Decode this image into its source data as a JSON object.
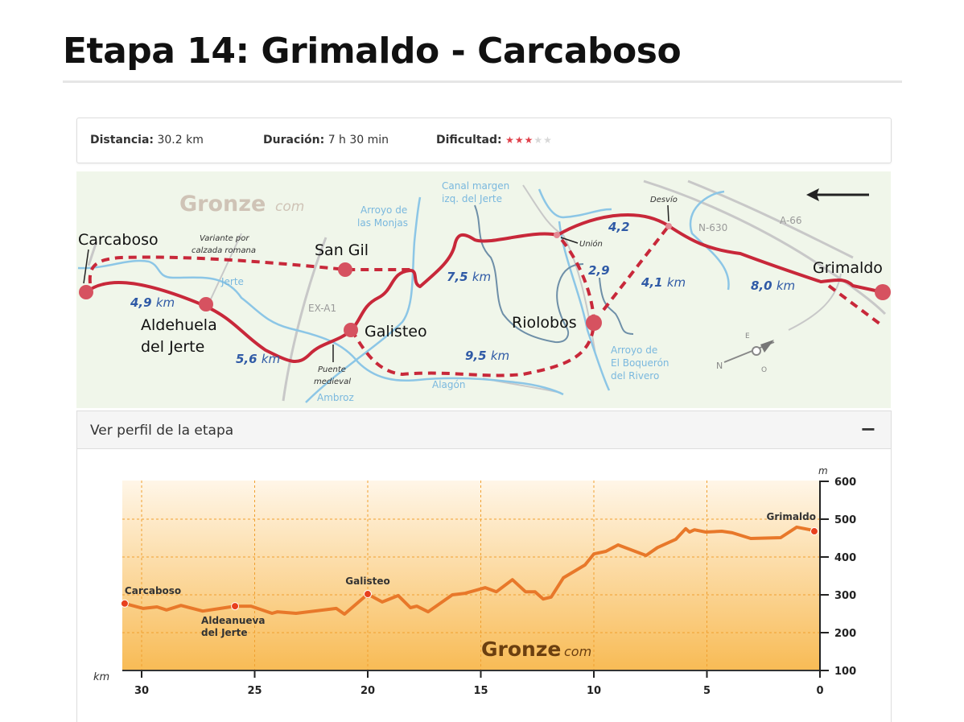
{
  "page": {
    "title": "Etapa 14: Grimaldo - Carcaboso"
  },
  "info": {
    "distance_label": "Distancia:",
    "distance_value": "30.2 km",
    "duration_label": "Duración:",
    "duration_value": "7 h 30 min",
    "difficulty_label": "Dificultad:",
    "difficulty_stars": 3,
    "difficulty_max": 5
  },
  "map": {
    "logo": "Gronze",
    "logo_suffix": "com",
    "towns": [
      "Carcaboso",
      "San Gil",
      "Aldehuela",
      "del Jerte",
      "Galisteo",
      "Riolobos",
      "Grimaldo"
    ],
    "distances": [
      "4,9",
      "km",
      "5,6",
      "km",
      "7,5",
      "km",
      "9,5",
      "km",
      "4,2",
      "2,9",
      "4,1",
      "km",
      "8,0",
      "km"
    ],
    "notes": [
      "Variante por",
      "calzada romana",
      "Puente",
      "medieval",
      "Unión",
      "Desvío"
    ],
    "rivers": [
      "Jerte",
      "Arroyo de",
      "las Monjas",
      "Canal margen",
      "izq. del Jerte",
      "Ambroz",
      "Alagón",
      "Arroyo de",
      "El Boquerón",
      "del Rivero"
    ],
    "roads": [
      "EX-A1",
      "N-630",
      "A-66"
    ],
    "compass": [
      "N",
      "E",
      "O"
    ],
    "colors": {
      "route": "#c8283a",
      "river": "#8cc6e6",
      "road": "#c8c8c8",
      "distance": "#2f5aa6"
    }
  },
  "profile": {
    "header": "Ver perfil de la etapa",
    "collapse_label": "−"
  },
  "chart_data": {
    "type": "area",
    "title": "",
    "xlabel": "km",
    "ylabel": "m",
    "xlim": [
      30.85,
      0
    ],
    "ylim": [
      100,
      600
    ],
    "xticks": [
      30,
      25,
      20,
      15,
      10,
      5,
      0
    ],
    "yticks": [
      100,
      200,
      300,
      400,
      500,
      600
    ],
    "grid": true,
    "watermark": "Gronze",
    "watermark_suffix": "com",
    "line_color": "#e8782a",
    "points": [
      [
        30.75,
        277
      ],
      [
        29.93,
        264
      ],
      [
        29.32,
        268
      ],
      [
        28.9,
        260
      ],
      [
        28.26,
        272
      ],
      [
        27.3,
        257
      ],
      [
        25.87,
        270
      ],
      [
        25.16,
        270
      ],
      [
        24.23,
        251
      ],
      [
        23.99,
        255
      ],
      [
        23.17,
        251
      ],
      [
        21.39,
        264
      ],
      [
        21.03,
        249
      ],
      [
        20.0,
        302
      ],
      [
        19.36,
        281
      ],
      [
        18.65,
        298
      ],
      [
        18.11,
        266
      ],
      [
        17.83,
        270
      ],
      [
        17.33,
        255
      ],
      [
        16.26,
        300
      ],
      [
        15.69,
        304
      ],
      [
        14.8,
        319
      ],
      [
        14.31,
        308
      ],
      [
        13.6,
        340
      ],
      [
        13.02,
        308
      ],
      [
        12.6,
        308
      ],
      [
        12.24,
        289
      ],
      [
        11.89,
        294
      ],
      [
        11.35,
        345
      ],
      [
        10.39,
        379
      ],
      [
        10.0,
        408
      ],
      [
        9.47,
        415
      ],
      [
        8.93,
        432
      ],
      [
        7.69,
        404
      ],
      [
        7.19,
        425
      ],
      [
        6.37,
        447
      ],
      [
        5.94,
        475
      ],
      [
        5.77,
        466
      ],
      [
        5.55,
        472
      ],
      [
        5.05,
        466
      ],
      [
        4.34,
        468
      ],
      [
        3.88,
        464
      ],
      [
        3.06,
        449
      ],
      [
        1.74,
        451
      ],
      [
        1.03,
        479
      ],
      [
        0.43,
        472
      ],
      [
        0.25,
        468
      ]
    ],
    "waypoints": [
      {
        "name": "Carcaboso",
        "km": 30.75,
        "elev": 277,
        "label_lines": [
          "Carcaboso"
        ]
      },
      {
        "name": "Aldeanueva del Jerte",
        "km": 25.87,
        "elev": 270,
        "label_lines": [
          "Aldeanueva",
          "del Jerte"
        ]
      },
      {
        "name": "Galisteo",
        "km": 20.0,
        "elev": 302,
        "label_lines": [
          "Galisteo"
        ]
      },
      {
        "name": "Grimaldo",
        "km": 0.25,
        "elev": 468,
        "label_lines": [
          "Grimaldo"
        ]
      }
    ]
  }
}
